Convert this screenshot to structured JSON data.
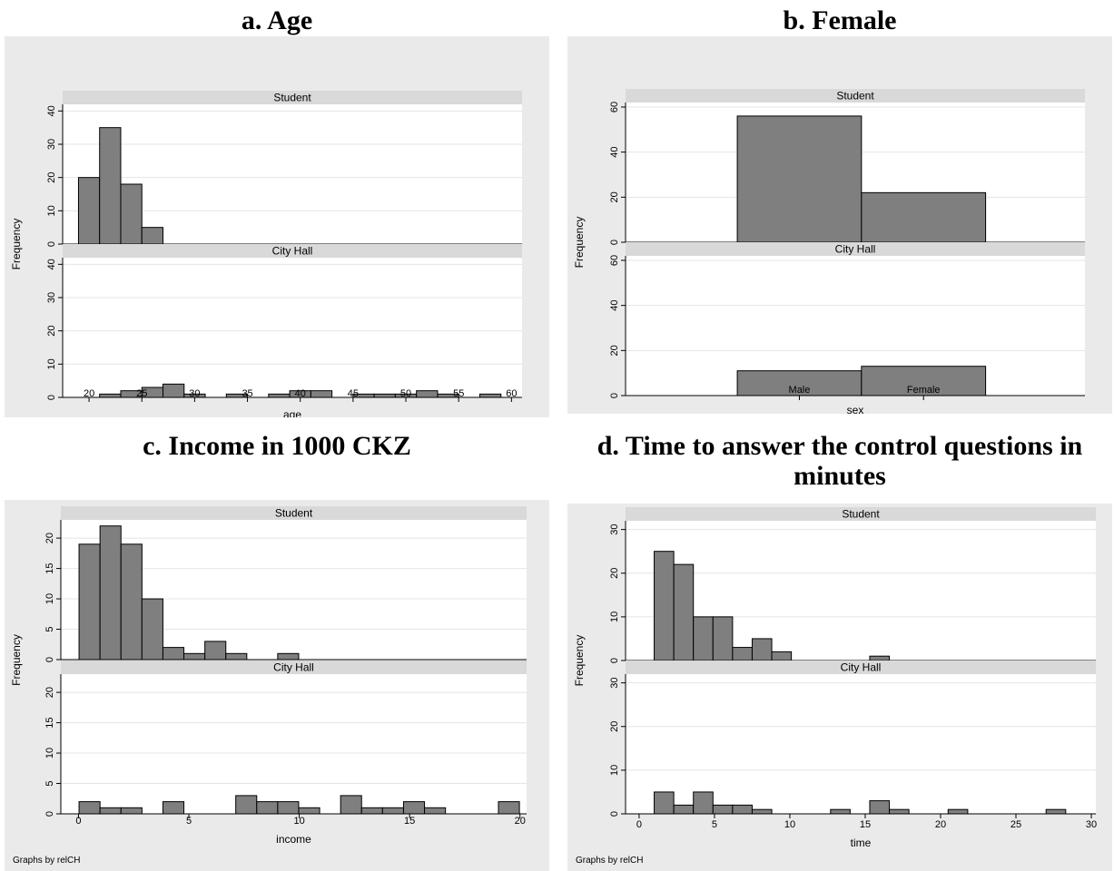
{
  "chart_data": [
    {
      "type": "bar",
      "chart_title": "a. Age",
      "xlabel": "age",
      "ylabel": "Frequency",
      "note": "Graphs by relCH",
      "xlim": [
        17.5,
        61
      ],
      "ylim": [
        0,
        42
      ],
      "xticks": [
        "20",
        "25",
        "30",
        "35",
        "40",
        "45",
        "50",
        "55",
        "60"
      ],
      "yticks": [
        "0",
        "10",
        "20",
        "30",
        "40"
      ],
      "bin_width": 2,
      "panels": [
        {
          "name": "Student",
          "bins": [
            {
              "x": 20,
              "y": 20
            },
            {
              "x": 22,
              "y": 35
            },
            {
              "x": 24,
              "y": 18
            },
            {
              "x": 26,
              "y": 5
            }
          ]
        },
        {
          "name": "City Hall",
          "bins": [
            {
              "x": 22,
              "y": 1
            },
            {
              "x": 24,
              "y": 2
            },
            {
              "x": 26,
              "y": 3
            },
            {
              "x": 28,
              "y": 4
            },
            {
              "x": 30,
              "y": 1
            },
            {
              "x": 34,
              "y": 1
            },
            {
              "x": 38,
              "y": 1
            },
            {
              "x": 40,
              "y": 2
            },
            {
              "x": 42,
              "y": 2
            },
            {
              "x": 46,
              "y": 1
            },
            {
              "x": 48,
              "y": 1
            },
            {
              "x": 50,
              "y": 1
            },
            {
              "x": 52,
              "y": 2
            },
            {
              "x": 54,
              "y": 1
            },
            {
              "x": 58,
              "y": 1
            }
          ]
        }
      ]
    },
    {
      "type": "bar",
      "chart_title": "b. Female",
      "xlabel": "sex",
      "ylabel": "Frequency",
      "note": "Graphs by relCH",
      "xlim": [
        -1.4,
        2.3
      ],
      "ylim": [
        0,
        62
      ],
      "xticks": [
        "Male",
        "Female"
      ],
      "yticks": [
        "0",
        "20",
        "40",
        "60"
      ],
      "bin_width": 1,
      "panels": [
        {
          "name": "Student",
          "bins": [
            {
              "x": 0,
              "y": 56
            },
            {
              "x": 1,
              "y": 22
            }
          ]
        },
        {
          "name": "City Hall",
          "bins": [
            {
              "x": 0,
              "y": 11
            },
            {
              "x": 1,
              "y": 13
            }
          ]
        }
      ]
    },
    {
      "type": "bar",
      "chart_title": "c. Income in 1000 CKZ",
      "xlabel": "income",
      "ylabel": "Frequency",
      "note": "Graphs by relCH",
      "xlim": [
        -0.8,
        20.3
      ],
      "ylim": [
        0,
        23
      ],
      "xticks": [
        "0",
        "5",
        "10",
        "15",
        "20"
      ],
      "yticks": [
        "0",
        "5",
        "10",
        "15",
        "20"
      ],
      "bin_width": 0.95,
      "panels": [
        {
          "name": "Student",
          "bins": [
            {
              "x": 0.5,
              "y": 19
            },
            {
              "x": 1.45,
              "y": 22
            },
            {
              "x": 2.4,
              "y": 19
            },
            {
              "x": 3.35,
              "y": 10
            },
            {
              "x": 4.3,
              "y": 2
            },
            {
              "x": 5.25,
              "y": 1
            },
            {
              "x": 6.2,
              "y": 3
            },
            {
              "x": 7.15,
              "y": 1
            },
            {
              "x": 9.5,
              "y": 1
            }
          ]
        },
        {
          "name": "City Hall",
          "bins": [
            {
              "x": 0.5,
              "y": 2
            },
            {
              "x": 1.45,
              "y": 1
            },
            {
              "x": 2.4,
              "y": 1
            },
            {
              "x": 4.3,
              "y": 2
            },
            {
              "x": 7.6,
              "y": 3
            },
            {
              "x": 8.55,
              "y": 2
            },
            {
              "x": 9.5,
              "y": 2
            },
            {
              "x": 10.45,
              "y": 1
            },
            {
              "x": 12.35,
              "y": 3
            },
            {
              "x": 13.3,
              "y": 1
            },
            {
              "x": 14.25,
              "y": 1
            },
            {
              "x": 15.2,
              "y": 2
            },
            {
              "x": 16.15,
              "y": 1
            },
            {
              "x": 19.5,
              "y": 2
            }
          ]
        }
      ]
    },
    {
      "type": "bar",
      "chart_title": "d. Time to answer the control questions in minutes",
      "xlabel": "time",
      "ylabel": "Frequency",
      "note": "Graphs by relCH",
      "xlim": [
        -0.9,
        30.3
      ],
      "ylim": [
        0,
        32
      ],
      "xticks": [
        "0",
        "5",
        "10",
        "15",
        "20",
        "25",
        "30"
      ],
      "yticks": [
        "0",
        "10",
        "20",
        "30"
      ],
      "bin_width": 1.3,
      "panels": [
        {
          "name": "Student",
          "bins": [
            {
              "x": 1.65,
              "y": 25
            },
            {
              "x": 2.95,
              "y": 22
            },
            {
              "x": 4.25,
              "y": 10
            },
            {
              "x": 5.55,
              "y": 10
            },
            {
              "x": 6.85,
              "y": 3
            },
            {
              "x": 8.15,
              "y": 5
            },
            {
              "x": 9.45,
              "y": 2
            },
            {
              "x": 15.95,
              "y": 1
            }
          ]
        },
        {
          "name": "City Hall",
          "bins": [
            {
              "x": 1.65,
              "y": 5
            },
            {
              "x": 2.95,
              "y": 2
            },
            {
              "x": 4.25,
              "y": 5
            },
            {
              "x": 5.55,
              "y": 2
            },
            {
              "x": 6.85,
              "y": 2
            },
            {
              "x": 8.15,
              "y": 1
            },
            {
              "x": 13.35,
              "y": 1
            },
            {
              "x": 15.95,
              "y": 3
            },
            {
              "x": 17.25,
              "y": 1
            },
            {
              "x": 21.15,
              "y": 1
            },
            {
              "x": 27.65,
              "y": 1
            }
          ]
        }
      ]
    }
  ]
}
